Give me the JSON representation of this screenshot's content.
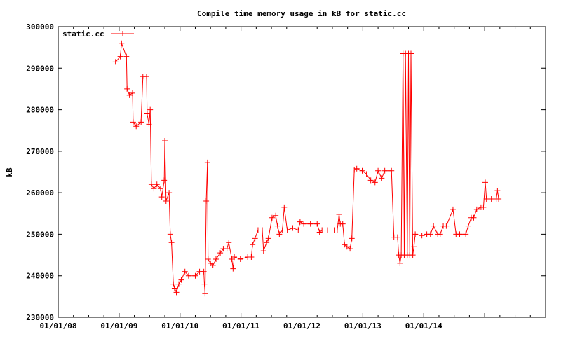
{
  "chart_data": {
    "type": "line",
    "title": "Compile time memory usage in kB for static.cc",
    "xlabel": "",
    "ylabel": "kB",
    "xlim": [
      2008,
      2016
    ],
    "ylim": [
      230000,
      300000
    ],
    "x_ticks": [
      {
        "value": 2008,
        "label": "01/01/08"
      },
      {
        "value": 2009,
        "label": "01/01/09"
      },
      {
        "value": 2010,
        "label": "01/01/10"
      },
      {
        "value": 2011,
        "label": "01/01/11"
      },
      {
        "value": 2012,
        "label": "01/01/12"
      },
      {
        "value": 2013,
        "label": "01/01/13"
      },
      {
        "value": 2014,
        "label": "01/01/14"
      },
      {
        "value": 2015,
        "label": ""
      }
    ],
    "y_ticks": [
      {
        "value": 230000,
        "label": "230000"
      },
      {
        "value": 240000,
        "label": "240000"
      },
      {
        "value": 250000,
        "label": "250000"
      },
      {
        "value": 260000,
        "label": "260000"
      },
      {
        "value": 270000,
        "label": "270000"
      },
      {
        "value": 280000,
        "label": "280000"
      },
      {
        "value": 290000,
        "label": "290000"
      },
      {
        "value": 300000,
        "label": "300000"
      }
    ],
    "grid": false,
    "legend": {
      "position": "top-left",
      "entries": [
        "static.cc"
      ]
    },
    "series": [
      {
        "name": "static.cc",
        "color": "#ff0000",
        "x": [
          2008.94,
          2009.02,
          2009.04,
          2009.12,
          2009.13,
          2009.17,
          2009.22,
          2009.23,
          2009.28,
          2009.36,
          2009.39,
          2009.45,
          2009.46,
          2009.49,
          2009.51,
          2009.53,
          2009.57,
          2009.62,
          2009.68,
          2009.7,
          2009.74,
          2009.75,
          2009.77,
          2009.82,
          2009.84,
          2009.86,
          2009.89,
          2009.91,
          2009.94,
          2009.98,
          2010.02,
          2010.08,
          2010.14,
          2010.25,
          2010.32,
          2010.39,
          2010.4,
          2010.41,
          2010.43,
          2010.45,
          2010.46,
          2010.5,
          2010.54,
          2010.59,
          2010.66,
          2010.71,
          2010.77,
          2010.8,
          2010.85,
          2010.87,
          2010.89,
          2010.99,
          2011.11,
          2011.17,
          2011.19,
          2011.23,
          2011.28,
          2011.35,
          2011.37,
          2011.42,
          2011.45,
          2011.51,
          2011.57,
          2011.6,
          2011.63,
          2011.68,
          2011.71,
          2011.76,
          2011.85,
          2011.94,
          2011.97,
          2012.03,
          2012.14,
          2012.25,
          2012.29,
          2012.33,
          2012.42,
          2012.54,
          2012.58,
          2012.61,
          2012.63,
          2012.67,
          2012.7,
          2012.74,
          2012.79,
          2012.82,
          2012.86,
          2012.9,
          2012.99,
          2013.06,
          2013.13,
          2013.2,
          2013.25,
          2013.31,
          2013.36,
          2013.47,
          2013.51,
          2013.57,
          2013.59,
          2013.61,
          2013.63,
          2013.66,
          2013.68,
          2013.7,
          2013.73,
          2013.75,
          2013.77,
          2013.79,
          2013.82,
          2013.84,
          2013.86,
          2013.97,
          2014.05,
          2014.11,
          2014.16,
          2014.23,
          2014.27,
          2014.32,
          2014.37,
          2014.48,
          2014.53,
          2014.59,
          2014.69,
          2014.73,
          2014.78,
          2014.82,
          2014.87,
          2014.94,
          2014.98,
          2015.01,
          2015.03,
          2015.11,
          2015.19,
          2015.21,
          2015.23
        ],
        "y": [
          291500,
          292800,
          296000,
          292800,
          285000,
          283500,
          284000,
          277000,
          276000,
          277000,
          288000,
          288000,
          279000,
          276500,
          280000,
          262000,
          261000,
          262000,
          261000,
          259000,
          263000,
          272500,
          258000,
          260000,
          250000,
          248000,
          238000,
          237000,
          236000,
          238000,
          239000,
          241000,
          240000,
          240000,
          241000,
          241000,
          238000,
          235700,
          258000,
          267300,
          244000,
          243000,
          242500,
          244000,
          245500,
          246500,
          246500,
          248000,
          244000,
          241700,
          244500,
          244000,
          244500,
          244500,
          247500,
          249000,
          251000,
          251000,
          246000,
          248000,
          249000,
          254000,
          254500,
          252000,
          250000,
          251000,
          256500,
          251000,
          251500,
          251000,
          253000,
          252500,
          252500,
          252500,
          250500,
          251000,
          251000,
          251000,
          251000,
          254800,
          252500,
          252500,
          247500,
          247000,
          246500,
          249000,
          265500,
          265800,
          265300,
          264500,
          263000,
          262500,
          265300,
          263500,
          265300,
          265300,
          249300,
          249300,
          245000,
          243000,
          245000,
          293500,
          245000,
          293500,
          245000,
          293500,
          245000,
          293500,
          245000,
          247000,
          250000,
          249700,
          250000,
          250000,
          252000,
          250000,
          250000,
          252000,
          252000,
          256000,
          250000,
          250000,
          250000,
          252000,
          254000,
          254000,
          256000,
          256500,
          256500,
          262500,
          258500,
          258500,
          258500,
          260500,
          258500
        ]
      }
    ]
  }
}
